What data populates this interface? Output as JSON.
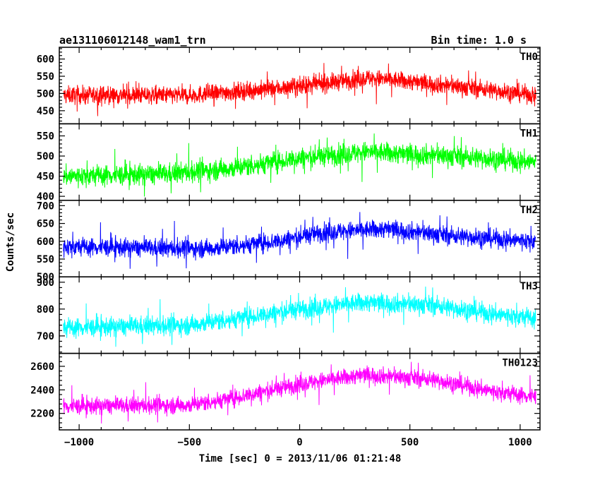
{
  "header": {
    "title": "ae131106012148_wam1_trn",
    "bin_time": "Bin time: 1.0 s"
  },
  "chart_data": {
    "type": "line",
    "title": "ae131106012148_wam1_trn",
    "xlabel": "Time [sec] 0 = 2013/11/06 01:21:48",
    "ylabel": "Counts/sec",
    "xlim": [
      -1090,
      1090
    ],
    "x_range": [
      -1071,
      1071
    ],
    "x_ticks": [
      -1000,
      -500,
      0,
      500,
      1000
    ],
    "x_tick_labels": [
      "−1000",
      "−500",
      "0",
      "500",
      "1000"
    ],
    "grid": false,
    "panels": [
      {
        "name": "TH0",
        "color": "#ff0000",
        "ylim": [
          412,
          634
        ],
        "y_ticks": [
          450,
          500,
          550,
          600
        ],
        "trend": [
          [
            -1071,
            495
          ],
          [
            -500,
            495
          ],
          [
            -400,
            500
          ],
          [
            0,
            520
          ],
          [
            300,
            545
          ],
          [
            500,
            535
          ],
          [
            800,
            515
          ],
          [
            1071,
            495
          ]
        ],
        "noise": 18,
        "spikes": 55
      },
      {
        "name": "TH1",
        "color": "#00ff00",
        "ylim": [
          390,
          580
        ],
        "y_ticks": [
          400,
          450,
          500,
          550
        ],
        "trend": [
          [
            -1071,
            450
          ],
          [
            -600,
            455
          ],
          [
            -300,
            470
          ],
          [
            0,
            495
          ],
          [
            300,
            510
          ],
          [
            700,
            500
          ],
          [
            1071,
            485
          ]
        ],
        "noise": 18,
        "spikes": 55
      },
      {
        "name": "TH2",
        "color": "#0000ff",
        "ylim": [
          500,
          715
        ],
        "y_ticks": [
          500,
          550,
          600,
          650,
          700
        ],
        "trend": [
          [
            -1071,
            585
          ],
          [
            -600,
            580
          ],
          [
            -400,
            580
          ],
          [
            -100,
            600
          ],
          [
            100,
            625
          ],
          [
            400,
            635
          ],
          [
            700,
            615
          ],
          [
            1071,
            600
          ]
        ],
        "noise": 18,
        "spikes": 60
      },
      {
        "name": "TH3",
        "color": "#00ffff",
        "ylim": [
          635,
          920
        ],
        "y_ticks": [
          700,
          800,
          900
        ],
        "trend": [
          [
            -1071,
            730
          ],
          [
            -500,
            740
          ],
          [
            -200,
            775
          ],
          [
            0,
            800
          ],
          [
            300,
            825
          ],
          [
            600,
            815
          ],
          [
            900,
            780
          ],
          [
            1071,
            765
          ]
        ],
        "noise": 25,
        "spikes": 75
      },
      {
        "name": "TH0123",
        "color": "#ff00ff",
        "ylim": [
          2060,
          2710
        ],
        "y_ticks": [
          2200,
          2400,
          2600
        ],
        "trend": [
          [
            -1071,
            2260
          ],
          [
            -500,
            2270
          ],
          [
            -300,
            2330
          ],
          [
            0,
            2450
          ],
          [
            300,
            2530
          ],
          [
            600,
            2490
          ],
          [
            900,
            2380
          ],
          [
            1071,
            2340
          ]
        ],
        "noise": 50,
        "spikes": 150
      }
    ]
  }
}
